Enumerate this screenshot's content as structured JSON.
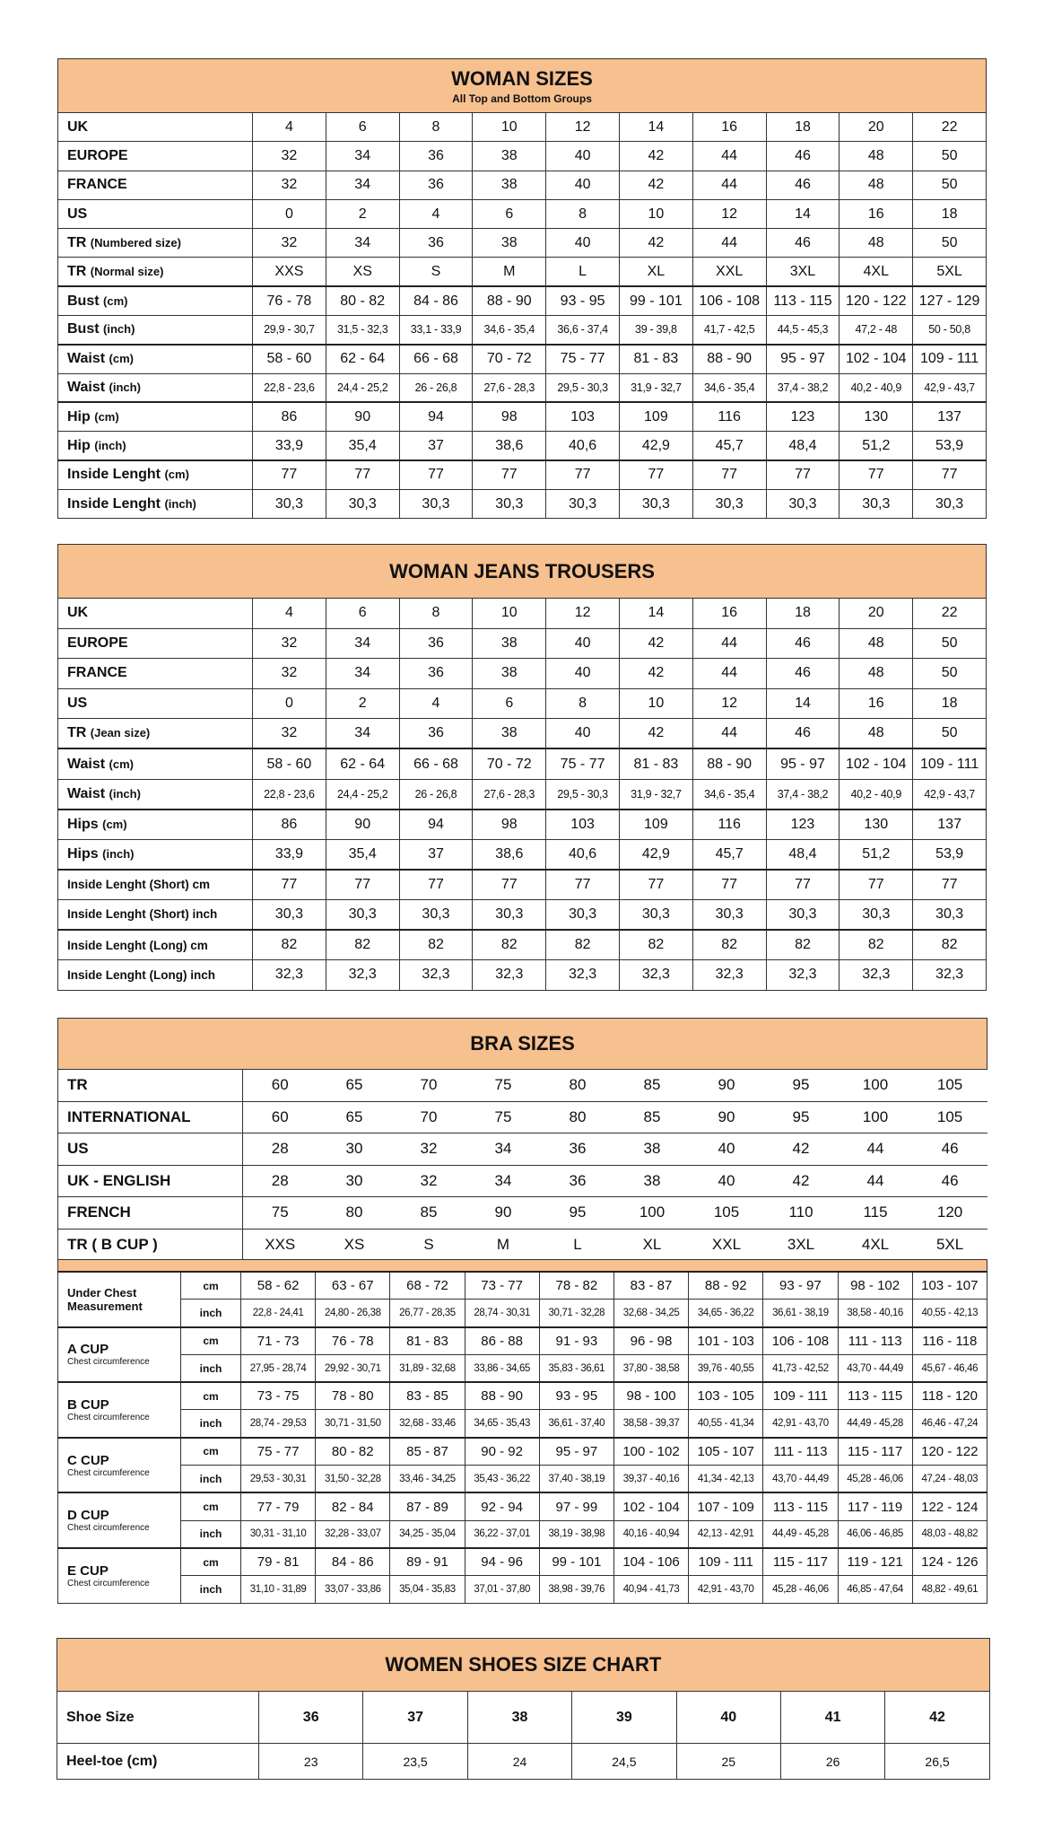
{
  "colors": {
    "header_bg": "#f7c08f",
    "border": "#333333"
  },
  "woman_sizes": {
    "title": "WOMAN SIZES",
    "subtitle": "All Top and Bottom Groups",
    "rows": [
      {
        "label": "UK",
        "unit": "",
        "values": [
          "4",
          "6",
          "8",
          "10",
          "12",
          "14",
          "16",
          "18",
          "20",
          "22"
        ]
      },
      {
        "label": "EUROPE",
        "unit": "",
        "values": [
          "32",
          "34",
          "36",
          "38",
          "40",
          "42",
          "44",
          "46",
          "48",
          "50"
        ]
      },
      {
        "label": "FRANCE",
        "unit": "",
        "values": [
          "32",
          "34",
          "36",
          "38",
          "40",
          "42",
          "44",
          "46",
          "48",
          "50"
        ]
      },
      {
        "label": "US",
        "unit": "",
        "values": [
          "0",
          "2",
          "4",
          "6",
          "8",
          "10",
          "12",
          "14",
          "16",
          "18"
        ]
      },
      {
        "label": "TR",
        "unit": "(Numbered size)",
        "values": [
          "32",
          "34",
          "36",
          "38",
          "40",
          "42",
          "44",
          "46",
          "48",
          "50"
        ]
      },
      {
        "label": "TR",
        "unit": "(Normal size)",
        "values": [
          "XXS",
          "XS",
          "S",
          "M",
          "L",
          "XL",
          "XXL",
          "3XL",
          "4XL",
          "5XL"
        ]
      },
      {
        "label": "Bust",
        "unit": "(cm)",
        "values": [
          "76 - 78",
          "80 - 82",
          "84 - 86",
          "88 - 90",
          "93 - 95",
          "99 - 101",
          "106 - 108",
          "113 - 115",
          "120 - 122",
          "127 - 129"
        ]
      },
      {
        "label": "Bust",
        "unit": "(inch)",
        "values": [
          "29,9 - 30,7",
          "31,5 - 32,3",
          "33,1 - 33,9",
          "34,6 - 35,4",
          "36,6 - 37,4",
          "39 - 39,8",
          "41,7 - 42,5",
          "44,5 - 45,3",
          "47,2 - 48",
          "50 - 50,8"
        ]
      },
      {
        "label": "Waist",
        "unit": "(cm)",
        "values": [
          "58 - 60",
          "62 - 64",
          "66 - 68",
          "70 - 72",
          "75 - 77",
          "81 - 83",
          "88 - 90",
          "95 - 97",
          "102 - 104",
          "109 - 111"
        ]
      },
      {
        "label": "Waist",
        "unit": "(inch)",
        "values": [
          "22,8 - 23,6",
          "24,4 - 25,2",
          "26 - 26,8",
          "27,6 - 28,3",
          "29,5 - 30,3",
          "31,9 - 32,7",
          "34,6 - 35,4",
          "37,4 - 38,2",
          "40,2 - 40,9",
          "42,9 - 43,7"
        ]
      },
      {
        "label": "Hip",
        "unit": "(cm)",
        "values": [
          "86",
          "90",
          "94",
          "98",
          "103",
          "109",
          "116",
          "123",
          "130",
          "137"
        ]
      },
      {
        "label": "Hip",
        "unit": "(inch)",
        "values": [
          "33,9",
          "35,4",
          "37",
          "38,6",
          "40,6",
          "42,9",
          "45,7",
          "48,4",
          "51,2",
          "53,9"
        ]
      },
      {
        "label": "Inside Lenght",
        "unit": "(cm)",
        "values": [
          "77",
          "77",
          "77",
          "77",
          "77",
          "77",
          "77",
          "77",
          "77",
          "77"
        ]
      },
      {
        "label": "Inside Lenght",
        "unit": "(inch)",
        "values": [
          "30,3",
          "30,3",
          "30,3",
          "30,3",
          "30,3",
          "30,3",
          "30,3",
          "30,3",
          "30,3",
          "30,3"
        ]
      }
    ]
  },
  "jeans": {
    "title": "WOMAN JEANS TROUSERS",
    "rows": [
      {
        "label": "UK",
        "unit": "",
        "values": [
          "4",
          "6",
          "8",
          "10",
          "12",
          "14",
          "16",
          "18",
          "20",
          "22"
        ]
      },
      {
        "label": "EUROPE",
        "unit": "",
        "values": [
          "32",
          "34",
          "36",
          "38",
          "40",
          "42",
          "44",
          "46",
          "48",
          "50"
        ]
      },
      {
        "label": "FRANCE",
        "unit": "",
        "values": [
          "32",
          "34",
          "36",
          "38",
          "40",
          "42",
          "44",
          "46",
          "48",
          "50"
        ]
      },
      {
        "label": "US",
        "unit": "",
        "values": [
          "0",
          "2",
          "4",
          "6",
          "8",
          "10",
          "12",
          "14",
          "16",
          "18"
        ]
      },
      {
        "label": "TR",
        "unit": "(Jean size)",
        "values": [
          "32",
          "34",
          "36",
          "38",
          "40",
          "42",
          "44",
          "46",
          "48",
          "50"
        ]
      },
      {
        "label": "Waist",
        "unit": "(cm)",
        "values": [
          "58 - 60",
          "62 - 64",
          "66 - 68",
          "70 - 72",
          "75 - 77",
          "81 - 83",
          "88 - 90",
          "95 - 97",
          "102 - 104",
          "109 - 111"
        ]
      },
      {
        "label": "Waist",
        "unit": "(inch)",
        "values": [
          "22,8 - 23,6",
          "24,4 - 25,2",
          "26 - 26,8",
          "27,6 - 28,3",
          "29,5 - 30,3",
          "31,9 - 32,7",
          "34,6 - 35,4",
          "37,4 - 38,2",
          "40,2 - 40,9",
          "42,9 - 43,7"
        ]
      },
      {
        "label": "Hips",
        "unit": "(cm)",
        "values": [
          "86",
          "90",
          "94",
          "98",
          "103",
          "109",
          "116",
          "123",
          "130",
          "137"
        ]
      },
      {
        "label": "Hips",
        "unit": "(inch)",
        "values": [
          "33,9",
          "35,4",
          "37",
          "38,6",
          "40,6",
          "42,9",
          "45,7",
          "48,4",
          "51,2",
          "53,9"
        ]
      },
      {
        "label": "Inside Lenght (Short) cm",
        "unit": "",
        "values": [
          "77",
          "77",
          "77",
          "77",
          "77",
          "77",
          "77",
          "77",
          "77",
          "77"
        ]
      },
      {
        "label": "Inside Lenght (Short) inch",
        "unit": "",
        "values": [
          "30,3",
          "30,3",
          "30,3",
          "30,3",
          "30,3",
          "30,3",
          "30,3",
          "30,3",
          "30,3",
          "30,3"
        ]
      },
      {
        "label": "Inside Lenght (Long) cm",
        "unit": "",
        "values": [
          "82",
          "82",
          "82",
          "82",
          "82",
          "82",
          "82",
          "82",
          "82",
          "82"
        ]
      },
      {
        "label": "Inside Lenght (Long) inch",
        "unit": "",
        "values": [
          "32,3",
          "32,3",
          "32,3",
          "32,3",
          "32,3",
          "32,3",
          "32,3",
          "32,3",
          "32,3",
          "32,3"
        ]
      }
    ]
  },
  "bra": {
    "title": "BRA SIZES",
    "rows": [
      {
        "label": "TR",
        "values": [
          "60",
          "65",
          "70",
          "75",
          "80",
          "85",
          "90",
          "95",
          "100",
          "105"
        ]
      },
      {
        "label": "INTERNATIONAL",
        "values": [
          "60",
          "65",
          "70",
          "75",
          "80",
          "85",
          "90",
          "95",
          "100",
          "105"
        ]
      },
      {
        "label": "US",
        "values": [
          "28",
          "30",
          "32",
          "34",
          "36",
          "38",
          "40",
          "42",
          "44",
          "46"
        ]
      },
      {
        "label": "UK - ENGLISH",
        "values": [
          "28",
          "30",
          "32",
          "34",
          "36",
          "38",
          "40",
          "42",
          "44",
          "46"
        ]
      },
      {
        "label": "FRENCH",
        "values": [
          "75",
          "80",
          "85",
          "90",
          "95",
          "100",
          "105",
          "110",
          "115",
          "120"
        ]
      },
      {
        "label": "TR ( B CUP )",
        "values": [
          "XXS",
          "XS",
          "S",
          "M",
          "L",
          "XL",
          "XXL",
          "3XL",
          "4XL",
          "5XL"
        ]
      }
    ],
    "cups": [
      {
        "name": "Under Chest Measurement",
        "sub": "",
        "cm_label": "cm",
        "inch_label": "inch",
        "cm": [
          "58 - 62",
          "63 - 67",
          "68 - 72",
          "73 - 77",
          "78 - 82",
          "83 - 87",
          "88 - 92",
          "93 - 97",
          "98 - 102",
          "103 - 107"
        ],
        "inch": [
          "22,8 - 24,41",
          "24,80 - 26,38",
          "26,77 - 28,35",
          "28,74 - 30,31",
          "30,71 - 32,28",
          "32,68 - 34,25",
          "34,65 - 36,22",
          "36,61 - 38,19",
          "38,58 - 40,16",
          "40,55 - 42,13"
        ]
      },
      {
        "name": "A CUP",
        "sub": "Chest circumference",
        "cm_label": "cm",
        "inch_label": "inch",
        "cm": [
          "71 - 73",
          "76 - 78",
          "81 - 83",
          "86 - 88",
          "91 - 93",
          "96 - 98",
          "101 - 103",
          "106 - 108",
          "111 - 113",
          "116 - 118"
        ],
        "inch": [
          "27,95 - 28,74",
          "29,92 - 30,71",
          "31,89 - 32,68",
          "33,86 - 34,65",
          "35,83 - 36,61",
          "37,80 - 38,58",
          "39,76 - 40,55",
          "41,73 - 42,52",
          "43,70 - 44,49",
          "45,67 - 46,46"
        ]
      },
      {
        "name": "B CUP",
        "sub": "Chest circumference",
        "cm_label": "cm",
        "inch_label": "inch",
        "cm": [
          "73 - 75",
          "78 - 80",
          "83 - 85",
          "88 - 90",
          "93 - 95",
          "98 - 100",
          "103 - 105",
          "109 - 111",
          "113 - 115",
          "118 - 120"
        ],
        "inch": [
          "28,74 - 29,53",
          "30,71 - 31,50",
          "32,68 - 33,46",
          "34,65 - 35,43",
          "36,61 - 37,40",
          "38,58 - 39,37",
          "40,55 - 41,34",
          "42,91 - 43,70",
          "44,49 - 45,28",
          "46,46 - 47,24"
        ]
      },
      {
        "name": "C CUP",
        "sub": "Chest circumference",
        "cm_label": "cm",
        "inch_label": "inch",
        "cm": [
          "75 - 77",
          "80 - 82",
          "85 - 87",
          "90 - 92",
          "95 - 97",
          "100 - 102",
          "105 - 107",
          "111 - 113",
          "115 - 117",
          "120 - 122"
        ],
        "inch": [
          "29,53 - 30,31",
          "31,50 - 32,28",
          "33,46 - 34,25",
          "35,43 - 36,22",
          "37,40 - 38,19",
          "39,37 - 40,16",
          "41,34 - 42,13",
          "43,70 - 44,49",
          "45,28 - 46,06",
          "47,24 - 48,03"
        ]
      },
      {
        "name": "D CUP",
        "sub": "Chest circumference",
        "cm_label": "cm",
        "inch_label": "inch",
        "cm": [
          "77 - 79",
          "82 - 84",
          "87 - 89",
          "92 - 94",
          "97 - 99",
          "102 - 104",
          "107 - 109",
          "113 - 115",
          "117 - 119",
          "122 - 124"
        ],
        "inch": [
          "30,31 - 31,10",
          "32,28 - 33,07",
          "34,25 - 35,04",
          "36,22 - 37,01",
          "38,19 - 38,98",
          "40,16 - 40,94",
          "42,13 - 42,91",
          "44,49 - 45,28",
          "46,06 - 46,85",
          "48,03 - 48,82"
        ]
      },
      {
        "name": "E CUP",
        "sub": "Chest circumference",
        "cm_label": "cm",
        "inch_label": "inch",
        "cm": [
          "79 - 81",
          "84 - 86",
          "89 - 91",
          "94 - 96",
          "99 - 101",
          "104 - 106",
          "109 - 111",
          "115 - 117",
          "119 - 121",
          "124 - 126"
        ],
        "inch": [
          "31,10 - 31,89",
          "33,07 - 33,86",
          "35,04 - 35,83",
          "37,01 - 37,80",
          "38,98 - 39,76",
          "40,94 - 41,73",
          "42,91 - 43,70",
          "45,28 - 46,06",
          "46,85 - 47,64",
          "48,82 - 49,61"
        ]
      }
    ]
  },
  "shoes": {
    "title": "WOMEN SHOES SIZE CHART",
    "rows": [
      {
        "label": "Shoe Size",
        "values": [
          "36",
          "37",
          "38",
          "39",
          "40",
          "41",
          "42"
        ]
      },
      {
        "label": "Heel-toe (cm)",
        "values": [
          "23",
          "23,5",
          "24",
          "24,5",
          "25",
          "26",
          "26,5"
        ]
      }
    ]
  }
}
